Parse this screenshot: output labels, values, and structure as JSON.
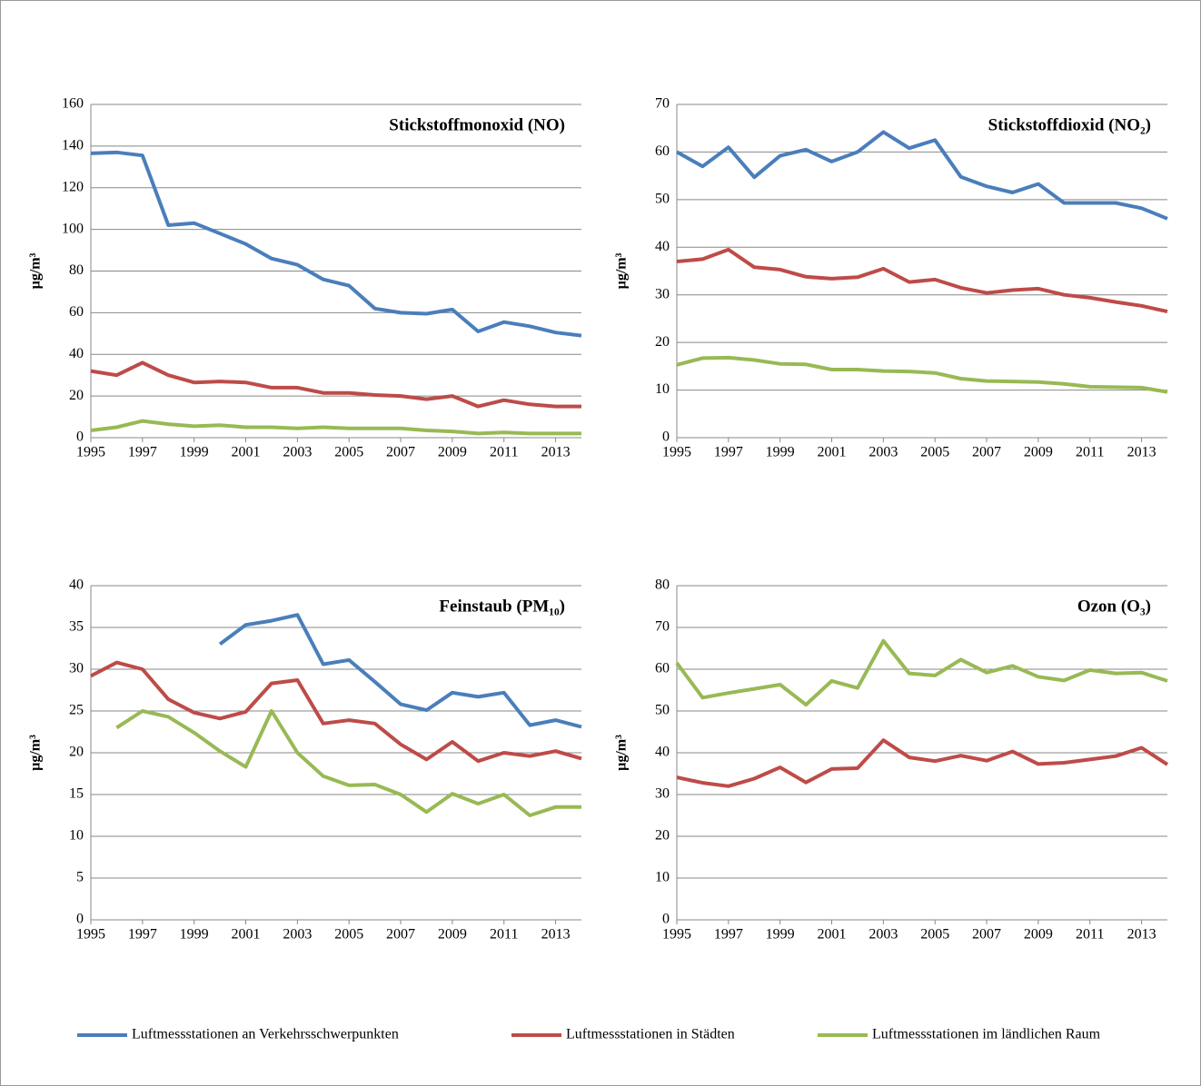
{
  "chart_data": [
    {
      "type": "line",
      "title": "Stickstoffmonoxid (NO)",
      "ylabel": "µg/m³",
      "x": [
        1995,
        1996,
        1997,
        1998,
        1999,
        2000,
        2001,
        2002,
        2003,
        2004,
        2005,
        2006,
        2007,
        2008,
        2009,
        2010,
        2011,
        2012,
        2013,
        2014
      ],
      "xlim": [
        1995,
        2014
      ],
      "xticks": [
        1995,
        1997,
        1999,
        2001,
        2003,
        2005,
        2007,
        2009,
        2011,
        2013
      ],
      "ylim": [
        0,
        160
      ],
      "yticks": [
        0,
        20,
        40,
        60,
        80,
        100,
        120,
        140,
        160
      ],
      "grid": true,
      "series": [
        {
          "name": "Luftmessstationen an Verkehrsschwerpunkten",
          "color": "#4a7ebb",
          "values": [
            136.5,
            137,
            135.5,
            102,
            103,
            98,
            93,
            86,
            83,
            76,
            73,
            62,
            60,
            59.5,
            61.5,
            51,
            55.5,
            53.5,
            50.5,
            49
          ]
        },
        {
          "name": "Luftmessstationen in Städten",
          "color": "#be4b48",
          "values": [
            32,
            30,
            36,
            30,
            26.5,
            27,
            26.5,
            24,
            24,
            21.5,
            21.5,
            20.5,
            20,
            18.5,
            20,
            15,
            18,
            16,
            15,
            15
          ]
        },
        {
          "name": "Luftmessstationen im ländlichen Raum",
          "color": "#98b954",
          "values": [
            3.5,
            5,
            8,
            6.5,
            5.5,
            6,
            5,
            5,
            4.5,
            5,
            4.5,
            4.5,
            4.5,
            3.5,
            3,
            2,
            2.5,
            2,
            2,
            2
          ]
        }
      ]
    },
    {
      "type": "line",
      "title": "Stickstoffdioxid (NO₂)",
      "ylabel": "µg/m³",
      "x": [
        1995,
        1996,
        1997,
        1998,
        1999,
        2000,
        2001,
        2002,
        2003,
        2004,
        2005,
        2006,
        2007,
        2008,
        2009,
        2010,
        2011,
        2012,
        2013,
        2014
      ],
      "xlim": [
        1995,
        2014
      ],
      "xticks": [
        1995,
        1997,
        1999,
        2001,
        2003,
        2005,
        2007,
        2009,
        2011,
        2013
      ],
      "ylim": [
        0,
        70
      ],
      "yticks": [
        0,
        10,
        20,
        30,
        40,
        50,
        60,
        70
      ],
      "grid": true,
      "series": [
        {
          "color": "#4a7ebb",
          "values": [
            60,
            57,
            61,
            54.7,
            59.2,
            60.5,
            58,
            60,
            64.2,
            60.8,
            62.5,
            54.8,
            52.8,
            51.5,
            53.3,
            49.3,
            49.3,
            49.3,
            48.2,
            46
          ]
        },
        {
          "color": "#be4b48",
          "values": [
            37,
            37.5,
            39.5,
            35.8,
            35.3,
            33.8,
            33.4,
            33.7,
            35.5,
            32.7,
            33.2,
            31.5,
            30.4,
            31,
            31.3,
            30,
            29.4,
            28.5,
            27.7,
            26.5
          ]
        },
        {
          "color": "#98b954",
          "values": [
            15.3,
            16.7,
            16.8,
            16.3,
            15.5,
            15.4,
            14.3,
            14.3,
            14,
            13.9,
            13.6,
            12.4,
            11.9,
            11.8,
            11.7,
            11.3,
            10.7,
            10.6,
            10.5,
            9.6
          ]
        }
      ]
    },
    {
      "type": "line",
      "title": "Feinstaub (PM₁₀)",
      "ylabel": "µg/m³",
      "x": [
        1995,
        1996,
        1997,
        1998,
        1999,
        2000,
        2001,
        2002,
        2003,
        2004,
        2005,
        2006,
        2007,
        2008,
        2009,
        2010,
        2011,
        2012,
        2013,
        2014
      ],
      "xlim": [
        1995,
        2014
      ],
      "xticks": [
        1995,
        1997,
        1999,
        2001,
        2003,
        2005,
        2007,
        2009,
        2011,
        2013
      ],
      "ylim": [
        0,
        40
      ],
      "yticks": [
        0,
        5,
        10,
        15,
        20,
        25,
        30,
        35,
        40
      ],
      "grid": true,
      "series": [
        {
          "color": "#4a7ebb",
          "values": [
            null,
            null,
            null,
            null,
            null,
            33,
            35.3,
            35.8,
            36.5,
            30.6,
            31.1,
            28.5,
            25.8,
            25.1,
            27.2,
            26.7,
            27.2,
            23.3,
            23.9,
            23.1
          ]
        },
        {
          "color": "#be4b48",
          "values": [
            29.2,
            30.8,
            30,
            26.4,
            24.8,
            24.1,
            24.9,
            28.3,
            28.7,
            23.5,
            23.9,
            23.5,
            21,
            19.2,
            21.3,
            19,
            20,
            19.6,
            20.2,
            19.3
          ]
        },
        {
          "color": "#98b954",
          "values": [
            null,
            23,
            25,
            24.3,
            22.4,
            20.2,
            18.3,
            25,
            20,
            17.2,
            16.1,
            16.2,
            15,
            12.9,
            15.1,
            13.9,
            15,
            12.5,
            13.5,
            13.5
          ]
        }
      ]
    },
    {
      "type": "line",
      "title": "Ozon (O₃)",
      "ylabel": "µg/m³",
      "x": [
        1995,
        1996,
        1997,
        1998,
        1999,
        2000,
        2001,
        2002,
        2003,
        2004,
        2005,
        2006,
        2007,
        2008,
        2009,
        2010,
        2011,
        2012,
        2013,
        2014
      ],
      "xlim": [
        1995,
        2014
      ],
      "xticks": [
        1995,
        1997,
        1999,
        2001,
        2003,
        2005,
        2007,
        2009,
        2011,
        2013
      ],
      "ylim": [
        0,
        80
      ],
      "yticks": [
        0,
        10,
        20,
        30,
        40,
        50,
        60,
        70,
        80
      ],
      "grid": true,
      "series": [
        {
          "color": "#be4b48",
          "values": [
            34.1,
            32.8,
            32,
            33.8,
            36.5,
            32.9,
            36.1,
            36.3,
            43,
            38.9,
            38,
            39.3,
            38.1,
            40.3,
            37.3,
            37.6,
            38.4,
            39.2,
            41.2,
            37.2
          ]
        },
        {
          "color": "#98b954",
          "values": [
            61.5,
            53.2,
            54.3,
            55.3,
            56.3,
            51.5,
            57.2,
            55.5,
            66.8,
            59,
            58.5,
            62.3,
            59.2,
            60.8,
            58.2,
            57.3,
            59.8,
            59,
            59.2,
            57.2
          ]
        }
      ]
    }
  ]
}
